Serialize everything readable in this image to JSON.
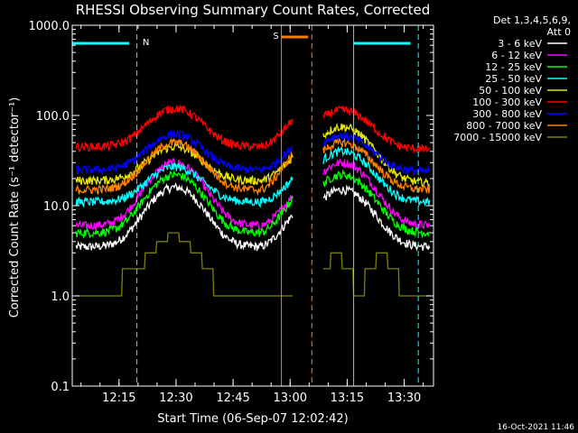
{
  "chart_data": {
    "type": "line",
    "title": "RHESSI Observing Summary Count Rates, Corrected",
    "xlabel": "Start Time (06-Sep-07 12:02:42)",
    "ylabel": "Corrected Count Rate (s⁻¹ detector⁻¹)",
    "yscale": "log",
    "ylim": [
      0.1,
      1000
    ],
    "xlim_minutes": [
      0,
      95
    ],
    "x_ticks": [
      "12:15",
      "12:30",
      "12:45",
      "13:00",
      "13:15",
      "13:30"
    ],
    "x_tick_minutes": [
      12.3,
      27.3,
      42.3,
      57.3,
      72.3,
      87.3
    ],
    "y_ticks": [
      "0.1",
      "1.0",
      "10.0",
      "100.0",
      "1000.0"
    ],
    "y_tick_values": [
      0.1,
      1,
      10,
      100,
      1000
    ],
    "legend_header": [
      "Det 1,3,4,5,6,9,",
      "Att 0"
    ],
    "legend_placement": "right",
    "footer": "16-Oct-2021 11:46",
    "data_gap_minutes": [
      58,
      65
    ],
    "annotations": [
      {
        "label": "N",
        "type": "night",
        "x_start": 0.0,
        "x_end": 17.0,
        "color": "#00ffff"
      },
      {
        "label": "S",
        "type": "saa",
        "x_start": 55.0,
        "x_end": 63.0,
        "color": "#ff8000"
      },
      {
        "label": "",
        "type": "night",
        "x_start": 74.0,
        "x_end": 91.0,
        "color": "#00ffff"
      }
    ],
    "series": [
      {
        "name": "3 - 6 keV",
        "color": "#ffffff",
        "base1": 3.5,
        "peak1": 16,
        "end1": 8,
        "base2": 3.5,
        "peak2": 15
      },
      {
        "name": "6 - 12 keV",
        "color": "#ff00ff",
        "base1": 6,
        "peak1": 30,
        "end1": 13,
        "base2": 6,
        "peak2": 30
      },
      {
        "name": "12 - 25 keV",
        "color": "#00ff00",
        "base1": 5,
        "peak1": 22,
        "end1": 12,
        "base2": 5,
        "peak2": 22
      },
      {
        "name": "25 - 50 keV",
        "color": "#00ffff",
        "base1": 11,
        "peak1": 27,
        "end1": 20,
        "base2": 11,
        "peak2": 40
      },
      {
        "name": "50 - 100 keV",
        "color": "#e6e600",
        "base1": 19,
        "peak1": 45,
        "end1": 35,
        "base2": 18,
        "peak2": 75
      },
      {
        "name": "100 - 300 keV",
        "color": "#ff0000",
        "base1": 45,
        "peak1": 120,
        "end1": 90,
        "base2": 42,
        "peak2": 115
      },
      {
        "name": "300 - 800 keV",
        "color": "#0000ff",
        "base1": 25,
        "peak1": 62,
        "end1": 45,
        "base2": 24,
        "peak2": 60
      },
      {
        "name": "800 - 7000 keV",
        "color": "#ff8000",
        "base1": 15,
        "peak1": 50,
        "end1": 38,
        "base2": 15,
        "peak2": 50
      },
      {
        "name": "7000 - 15000 keV",
        "color": "#808000",
        "base1": 1,
        "peak1": 5,
        "end1": 1,
        "base2": 1,
        "peak2": 3
      }
    ]
  }
}
